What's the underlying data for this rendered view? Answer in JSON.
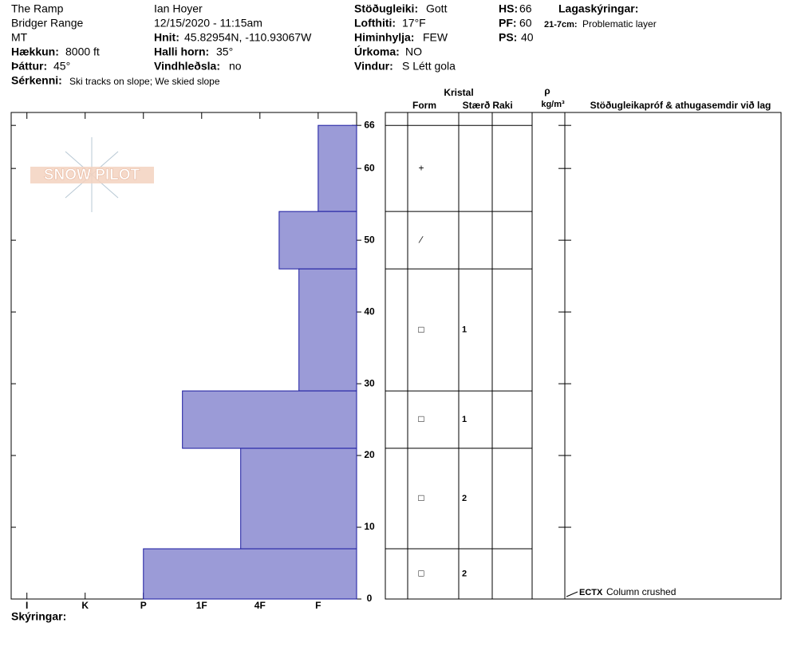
{
  "header": {
    "location": "The Ramp",
    "range": "Bridger Range",
    "state": "MT",
    "elevation": {
      "label": "Hækkun:",
      "value": "8000 ft"
    },
    "aspect": {
      "label": "Þáttur:",
      "value": "45°"
    },
    "features": {
      "label": "Sérkenni:",
      "value": "Ski tracks on slope; We skied slope"
    },
    "observer": "Ian Hoyer",
    "datetime": "12/15/2020 - 11:15am",
    "coords": {
      "label": "Hnit:",
      "value": "45.82954N, -110.93067W"
    },
    "slope": {
      "label": "Halli horn:",
      "value": "35°"
    },
    "wind_loading": {
      "label": "Vindhleðsla:",
      "value": "no"
    },
    "stability": {
      "label": "Stöðugleiki:",
      "value": "Gott"
    },
    "air_temp": {
      "label": "Lofthiti:",
      "value": "17°F"
    },
    "sky": {
      "label": "Himinhylja:",
      "value": "FEW"
    },
    "precip": {
      "label": "Úrkoma:",
      "value": "NO"
    },
    "wind": {
      "label": "Vindur:",
      "value": "S Létt gola"
    },
    "hs": {
      "label": "HS:",
      "value": 66
    },
    "pf": {
      "label": "PF:",
      "value": 60
    },
    "ps": {
      "label": "PS:",
      "value": 40
    },
    "legend_title": "Lagaskýringar:",
    "legend_items": [
      {
        "label": "21-7cm:",
        "text": "Problematic layer"
      }
    ],
    "notes_label": "Skýringar:",
    "logo": "SNOW PILOT"
  },
  "chart_data": {
    "type": "snow-profile",
    "color": "#9b9bd7",
    "ylim": [
      0,
      67.8
    ],
    "yticks": [
      0,
      10,
      20,
      30,
      40,
      50,
      60,
      66
    ],
    "xlim": [
      0.34,
      6.27
    ],
    "x_reversed": true,
    "xticks": [
      {
        "value": 6,
        "label": "I"
      },
      {
        "value": 5,
        "label": "K"
      },
      {
        "value": 4,
        "label": "P"
      },
      {
        "value": 3,
        "label": "1F"
      },
      {
        "value": 2,
        "label": "4F"
      },
      {
        "value": 1,
        "label": "F"
      }
    ],
    "columns": {
      "crystal": "Kristal",
      "form": "Form",
      "size": "Stærð",
      "moisture": "Raki",
      "density": "ρ",
      "density_unit": "kg/m³",
      "tests": "Stöðugleikapróf & athugasemdir við lag"
    },
    "layers": [
      {
        "top": 66,
        "bottom": 54,
        "hardness": 1,
        "form": "+"
      },
      {
        "top": 54,
        "bottom": 46,
        "hardness": 1.67,
        "form": "∕"
      },
      {
        "top": 46,
        "bottom": 29,
        "hardness": 1.33,
        "form": "□",
        "size": 1
      },
      {
        "top": 29,
        "bottom": 21,
        "hardness": 3.33,
        "form": "□",
        "size": 1
      },
      {
        "top": 21,
        "bottom": 7,
        "hardness": 2.33,
        "form": "□",
        "size": 2
      },
      {
        "top": 7,
        "bottom": 0,
        "hardness": 4,
        "form": "□",
        "size": 2
      }
    ],
    "tests": [
      {
        "depth": 0,
        "code": "ECTX",
        "comment": "Column crushed"
      }
    ]
  }
}
